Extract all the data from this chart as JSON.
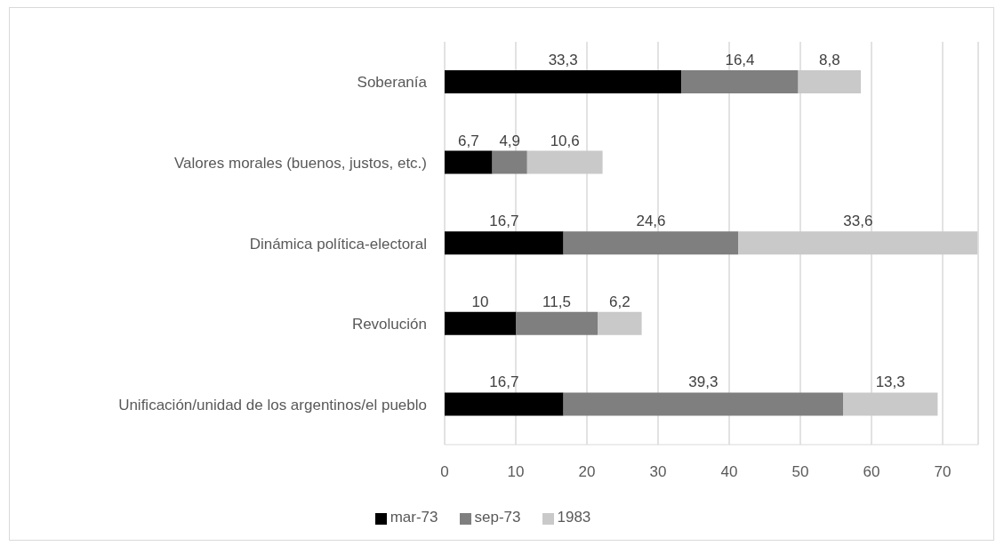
{
  "chart_data": {
    "type": "bar",
    "orientation": "horizontal",
    "stacked": true,
    "categories": [
      "Soberanía",
      "Valores morales (buenos, justos, etc.)",
      "Dinámica política-electoral",
      "Revolución",
      "Unificación/unidad de los argentinos/el pueblo"
    ],
    "series": [
      {
        "name": "mar-73",
        "color": "#000000",
        "values": [
          33.3,
          6.7,
          16.7,
          10,
          16.7
        ],
        "value_labels": [
          "33,3",
          "6,7",
          "16,7",
          "10",
          "16,7"
        ]
      },
      {
        "name": "sep-73",
        "color": "#7f7f7f",
        "values": [
          16.4,
          4.9,
          24.6,
          11.5,
          39.3
        ],
        "value_labels": [
          "16,4",
          "4,9",
          "24,6",
          "11,5",
          "39,3"
        ]
      },
      {
        "name": "1983",
        "color": "#c9c9c9",
        "values": [
          8.8,
          10.6,
          33.6,
          6.2,
          13.3
        ],
        "value_labels": [
          "8,8",
          "10,6",
          "33,6",
          "6,2",
          "13,3"
        ]
      }
    ],
    "xlim": [
      0,
      75
    ],
    "xticks": [
      0,
      10,
      20,
      30,
      40,
      50,
      60,
      70
    ],
    "grid": "x",
    "legend": "bottom"
  }
}
